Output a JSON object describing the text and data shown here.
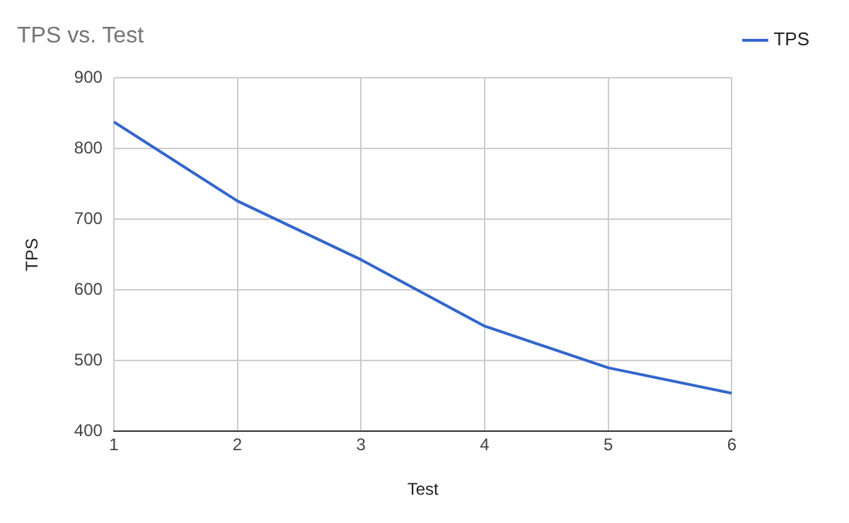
{
  "chart_data": {
    "type": "line",
    "title": "TPS vs. Test",
    "xlabel": "Test",
    "ylabel": "TPS",
    "x": [
      1,
      2,
      3,
      4,
      5,
      6
    ],
    "series": [
      {
        "name": "TPS",
        "color": "#3366cc",
        "values": [
          838,
          726,
          643,
          549,
          490,
          454
        ]
      }
    ],
    "xlim": [
      1,
      6
    ],
    "xticks": [
      1,
      2,
      3,
      4,
      5,
      6
    ],
    "ylim": [
      400,
      900
    ],
    "yticks": [
      400,
      500,
      600,
      700,
      800,
      900
    ],
    "grid": true,
    "legend": "top right",
    "marker": "none",
    "line_style": "solid"
  }
}
